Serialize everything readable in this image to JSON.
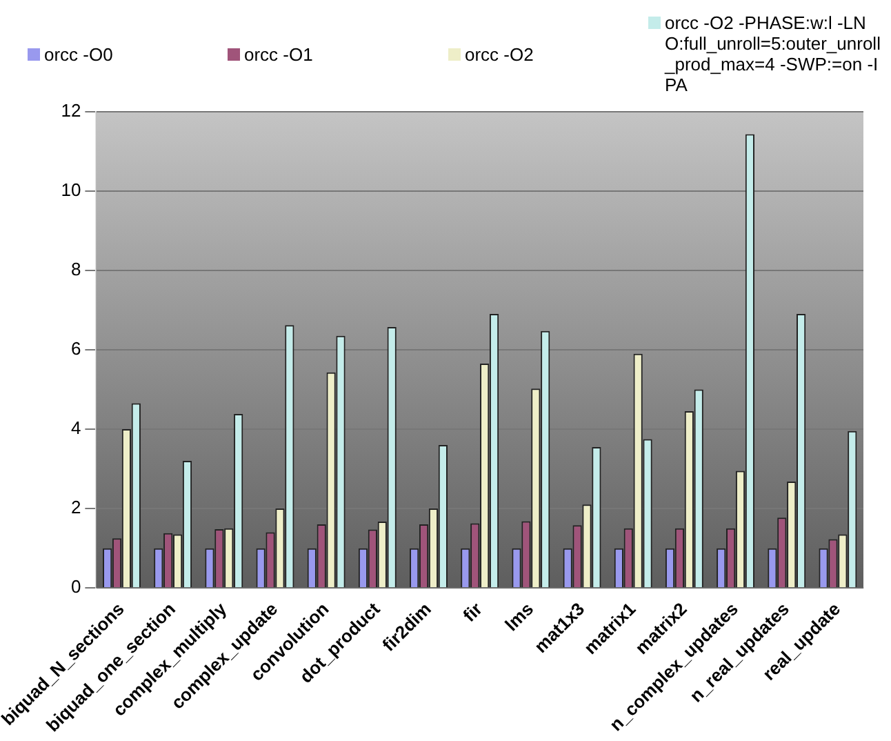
{
  "chart_data": {
    "type": "bar",
    "categories": [
      "biquad_N_sections",
      "biquad_one_section",
      "complex_multiply",
      "complex_update",
      "convolution",
      "dot_product",
      "fir2dim",
      "fir",
      "lms",
      "mat1x3",
      "matrix1",
      "matrix2",
      "n_complex_updates",
      "n_real_updates",
      "real_update"
    ],
    "series": [
      {
        "name": "orcc -O0",
        "color": "#9999ee",
        "values": [
          1,
          1,
          1,
          1,
          1,
          1,
          1,
          1,
          1,
          1,
          1,
          1,
          1,
          1,
          1
        ]
      },
      {
        "name": "orcc -O1",
        "color": "#a0547a",
        "values": [
          1.25,
          1.38,
          1.48,
          1.4,
          1.6,
          1.47,
          1.6,
          1.63,
          1.68,
          1.58,
          1.5,
          1.5,
          1.5,
          1.77,
          1.23
        ]
      },
      {
        "name": "orcc -O2",
        "color": "#eeeec8",
        "values": [
          4.0,
          1.35,
          1.5,
          2.0,
          5.43,
          1.67,
          2.0,
          5.65,
          5.02,
          2.1,
          5.9,
          4.45,
          2.95,
          2.68,
          1.35
        ]
      },
      {
        "name": "orcc -O2 -PHASE:w:l -LNO:full_unroll=5:outer_unroll_prod_max=4 -SWP:=on -IPA",
        "color": "#c4ecea",
        "values": [
          4.65,
          3.2,
          4.38,
          6.62,
          6.35,
          6.57,
          3.6,
          6.9,
          6.47,
          3.55,
          3.75,
          5.0,
          11.43,
          6.9,
          3.95
        ]
      }
    ],
    "ylim": [
      0,
      12
    ],
    "yticks": [
      0,
      2,
      4,
      6,
      8,
      10,
      12
    ],
    "grid": "y",
    "legend": "top"
  }
}
